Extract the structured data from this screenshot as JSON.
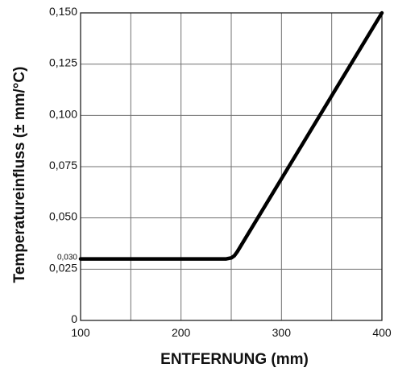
{
  "chart_data": {
    "type": "line",
    "xlabel": "ENTFERNUNG (mm)",
    "ylabel": "Temperatureinfluss (± mm/°C)",
    "xlim": [
      100,
      400
    ],
    "ylim": [
      0,
      0.15
    ],
    "grid": true,
    "x_ticks": [
      {
        "value": 100,
        "label": "100"
      },
      {
        "value": 200,
        "label": "200"
      },
      {
        "value": 300,
        "label": "300"
      },
      {
        "value": 400,
        "label": "400"
      }
    ],
    "y_ticks": [
      {
        "value": 0,
        "label": "0"
      },
      {
        "value": 0.025,
        "label": "0,025"
      },
      {
        "value": 0.05,
        "label": "0,050"
      },
      {
        "value": 0.075,
        "label": "0,075"
      },
      {
        "value": 0.1,
        "label": "0,100"
      },
      {
        "value": 0.125,
        "label": "0,125"
      },
      {
        "value": 0.15,
        "label": "0,150"
      }
    ],
    "annotations": [
      {
        "value": 0.03,
        "label": "0,030"
      }
    ],
    "series": [
      {
        "color": "#000000",
        "points": [
          {
            "x": 100,
            "y": 0.03
          },
          {
            "x": 245,
            "y": 0.03
          },
          {
            "x": 250,
            "y": 0.0305
          },
          {
            "x": 253,
            "y": 0.0315
          },
          {
            "x": 256,
            "y": 0.0335
          },
          {
            "x": 400,
            "y": 0.15
          }
        ]
      }
    ]
  }
}
